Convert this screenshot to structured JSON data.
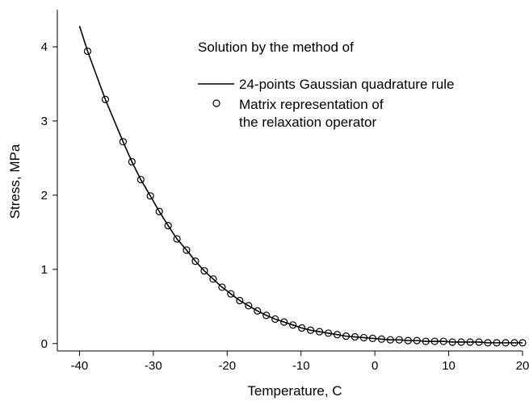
{
  "chart_data": {
    "type": "line",
    "xlabel": "Temperature, C",
    "ylabel": "Stress, MPa",
    "annotation": "Solution by the method of",
    "xlim": [
      -43,
      20
    ],
    "xticks": [
      -40,
      -30,
      -20,
      -10,
      0,
      10,
      20
    ],
    "ylim": [
      -0.1,
      4.5
    ],
    "yticks": [
      0,
      1,
      2,
      3,
      4
    ],
    "series": [
      {
        "name": "24-points Gaussian quadrature rule",
        "style": "line",
        "color": "#000000",
        "x": [
          -40,
          -38.9,
          -36.5,
          -34.1,
          -32.9,
          -31.7,
          -30.4,
          -29.2,
          -28.0,
          -26.8,
          -25.5,
          -24.3,
          -23.1,
          -21.9,
          -20.7,
          -19.5,
          -18.3,
          -17.1,
          -15.9,
          -14.7,
          -13.5,
          -12.3,
          -11.1,
          -9.9,
          -8.7,
          -7.5,
          -6.3,
          -5.1,
          -3.9,
          -2.7,
          -1.5,
          -0.3,
          0.9,
          2.1,
          3.3,
          4.5,
          5.7,
          6.9,
          8.1,
          9.3,
          10.5,
          11.7,
          12.9,
          14.1,
          15.3,
          16.5,
          17.7,
          18.9,
          20
        ],
        "values": [
          4.28,
          3.94,
          3.29,
          2.72,
          2.45,
          2.21,
          1.99,
          1.78,
          1.59,
          1.41,
          1.26,
          1.11,
          0.98,
          0.87,
          0.76,
          0.67,
          0.58,
          0.51,
          0.44,
          0.38,
          0.33,
          0.29,
          0.25,
          0.21,
          0.18,
          0.16,
          0.14,
          0.12,
          0.1,
          0.09,
          0.08,
          0.07,
          0.06,
          0.05,
          0.05,
          0.04,
          0.04,
          0.03,
          0.03,
          0.03,
          0.02,
          0.02,
          0.02,
          0.02,
          0.01,
          0.01,
          0.01,
          0.01,
          0.01
        ]
      },
      {
        "name": "Matrix representation of the relaxation operator",
        "style": "markers",
        "color": "#000000",
        "x": [
          -38.9,
          -36.5,
          -34.1,
          -32.9,
          -31.7,
          -30.4,
          -29.2,
          -28.0,
          -26.8,
          -25.5,
          -24.3,
          -23.1,
          -21.9,
          -20.7,
          -19.5,
          -18.3,
          -17.1,
          -15.9,
          -14.7,
          -13.5,
          -12.3,
          -11.1,
          -9.9,
          -8.7,
          -7.5,
          -6.3,
          -5.1,
          -3.9,
          -2.7,
          -1.5,
          -0.3,
          0.9,
          2.1,
          3.3,
          4.5,
          5.7,
          6.9,
          8.1,
          9.3,
          10.5,
          11.7,
          12.9,
          14.1,
          15.3,
          16.5,
          17.7,
          18.9,
          20
        ],
        "values": [
          3.94,
          3.29,
          2.72,
          2.45,
          2.21,
          1.99,
          1.78,
          1.59,
          1.41,
          1.26,
          1.11,
          0.98,
          0.87,
          0.76,
          0.67,
          0.58,
          0.51,
          0.44,
          0.38,
          0.33,
          0.29,
          0.25,
          0.21,
          0.18,
          0.16,
          0.14,
          0.12,
          0.1,
          0.09,
          0.08,
          0.07,
          0.06,
          0.05,
          0.05,
          0.04,
          0.04,
          0.03,
          0.03,
          0.03,
          0.02,
          0.02,
          0.02,
          0.02,
          0.01,
          0.01,
          0.01,
          0.01,
          0.01
        ]
      }
    ]
  }
}
